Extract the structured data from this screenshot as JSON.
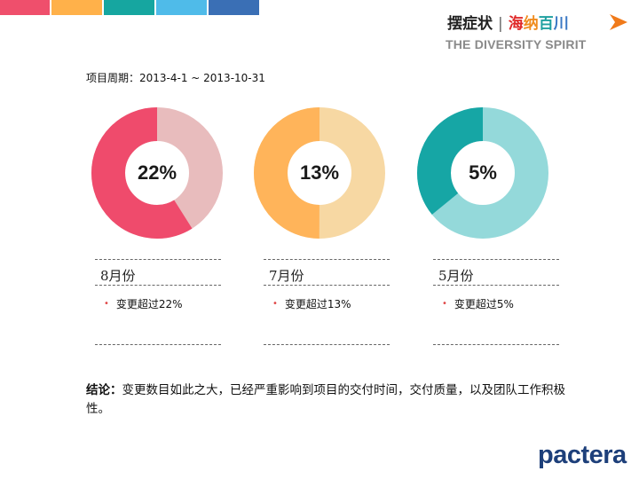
{
  "top_bar": {
    "segments": [
      {
        "name": "segment-pink",
        "color": "#ef4f6c",
        "width": 56
      },
      {
        "name": "segment-orange",
        "color": "#ffb14a",
        "width": 57
      },
      {
        "name": "segment-teal",
        "color": "#16a6a0",
        "width": 57
      },
      {
        "name": "segment-lightblue",
        "color": "#4fbbe9",
        "width": 57
      },
      {
        "name": "segment-blue",
        "color": "#3a6fb5",
        "width": 57
      }
    ]
  },
  "header": {
    "title": "摆症状",
    "separator": "|",
    "brand_chars": [
      {
        "ch": "海",
        "color": "#e02a2a"
      },
      {
        "ch": "纳",
        "color": "#f08c1e"
      },
      {
        "ch": "百",
        "color": "#1fa0a0"
      },
      {
        "ch": "川",
        "color": "#3a78c4"
      }
    ],
    "tagline": "THE DIVERSITY SPIRIT",
    "arrow_color": "#f07a1a"
  },
  "period": "项目周期：2013-4-1 ~ 2013-10-31",
  "donuts": [
    {
      "percent": 22,
      "label": "22%",
      "main_color": "#ef4b6c",
      "light_color": "#e8bcbd"
    },
    {
      "percent": 13,
      "label": "13%",
      "main_color": "#ffb45a",
      "light_color": "#f7d8a3"
    },
    {
      "percent": 5,
      "label": "5%",
      "main_color": "#16a6a5",
      "light_color": "#94d9da"
    }
  ],
  "months": [
    {
      "label": "8月份",
      "bullet": "变更超过22%"
    },
    {
      "label": "7月份",
      "bullet": "变更超过13%"
    },
    {
      "label": "5月份",
      "bullet": "变更超过5%"
    }
  ],
  "conclusion": {
    "prefix": "结论：",
    "text": "变更数目如此之大，已经严重影响到项目的交付时间，交付质量，以及团队工作积极性。"
  },
  "logo": "pactera"
}
